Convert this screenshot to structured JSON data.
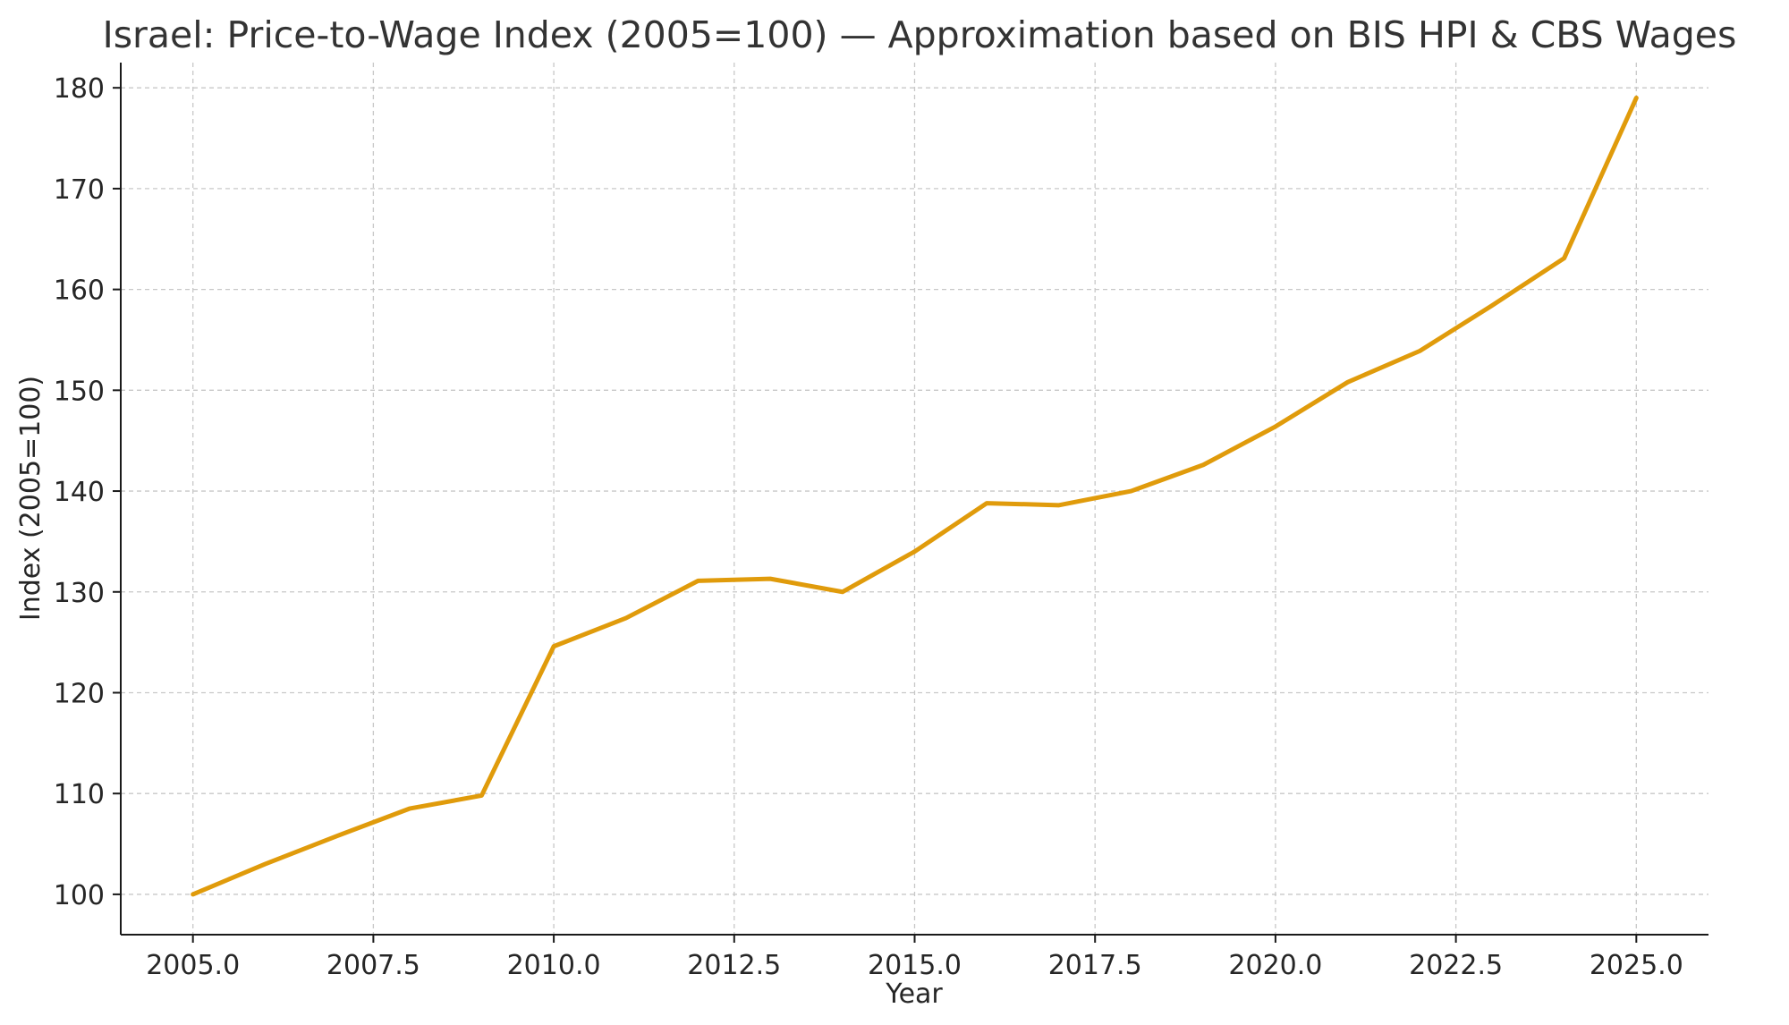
{
  "chart_data": {
    "type": "line",
    "title": "Israel: Price-to-Wage Index (2005=100) — Approximation based on BIS HPI & CBS Wages",
    "xlabel": "Year",
    "ylabel": "Index (2005=100)",
    "xlim": [
      2004.0,
      2026.0
    ],
    "ylim": [
      96.0,
      182.5
    ],
    "xticks": [
      2005.0,
      2007.5,
      2010.0,
      2012.5,
      2015.0,
      2017.5,
      2020.0,
      2022.5,
      2025.0
    ],
    "xtick_labels": [
      "2005.0",
      "2007.5",
      "2010.0",
      "2012.5",
      "2015.0",
      "2017.5",
      "2020.0",
      "2022.5",
      "2025.0"
    ],
    "yticks": [
      100,
      110,
      120,
      130,
      140,
      150,
      160,
      170,
      180
    ],
    "ytick_labels": [
      "100",
      "110",
      "120",
      "130",
      "140",
      "150",
      "160",
      "170",
      "180"
    ],
    "grid": true,
    "series": [
      {
        "color": "#e09b0b",
        "x": [
          2005,
          2006,
          2007,
          2008,
          2009,
          2010,
          2011,
          2012,
          2013,
          2014,
          2015,
          2016,
          2017,
          2018,
          2019,
          2020,
          2021,
          2022,
          2023,
          2024,
          2025
        ],
        "values": [
          100.0,
          103.0,
          105.8,
          108.5,
          109.8,
          124.6,
          127.4,
          131.1,
          131.3,
          130.0,
          134.0,
          138.8,
          138.6,
          140.0,
          142.6,
          146.4,
          150.8,
          153.9,
          158.4,
          163.1,
          179.0
        ]
      }
    ]
  }
}
